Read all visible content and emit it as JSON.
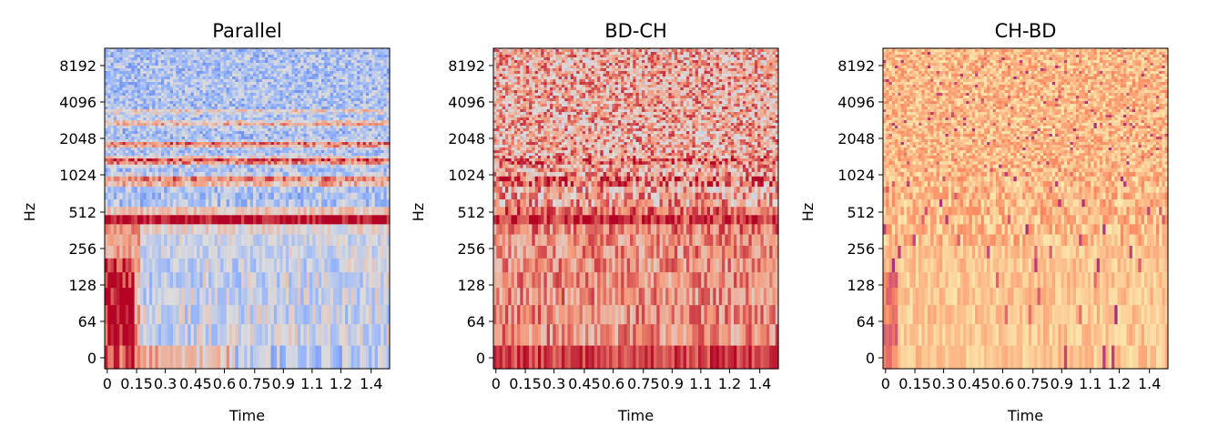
{
  "chart_data": [
    {
      "type": "heatmap",
      "title": "Parallel",
      "xlabel": "Time",
      "ylabel": "Hz",
      "colormap": "coolwarm",
      "x_ticks": [
        "0",
        "0.15",
        "0.3",
        "0.45",
        "0.6",
        "0.75",
        "0.9",
        "1.1",
        "1.2",
        "1.4"
      ],
      "y_ticks": [
        "0",
        "64",
        "128",
        "256",
        "512",
        "1024",
        "2048",
        "4096",
        "8192"
      ],
      "xlim": [
        0,
        1.5
      ],
      "y_scale": "log2"
    },
    {
      "type": "heatmap",
      "title": "BD-CH",
      "xlabel": "Time",
      "ylabel": "Hz",
      "colormap": "coolwarm",
      "x_ticks": [
        "0",
        "0.15",
        "0.3",
        "0.45",
        "0.6",
        "0.75",
        "0.9",
        "1.1",
        "1.2",
        "1.4"
      ],
      "y_ticks": [
        "0",
        "64",
        "128",
        "256",
        "512",
        "1024",
        "2048",
        "4096",
        "8192"
      ],
      "xlim": [
        0,
        1.5
      ],
      "y_scale": "log2"
    },
    {
      "type": "heatmap",
      "title": "CH-BD",
      "xlabel": "Time",
      "ylabel": "Hz",
      "colormap": "magma",
      "x_ticks": [
        "0",
        "0.15",
        "0.3",
        "0.45",
        "0.6",
        "0.75",
        "0.9",
        "1.1",
        "1.2",
        "1.4"
      ],
      "y_ticks": [
        "0",
        "64",
        "128",
        "256",
        "512",
        "1024",
        "2048",
        "4096",
        "8192"
      ],
      "xlim": [
        0,
        1.5
      ],
      "y_scale": "log2"
    }
  ]
}
